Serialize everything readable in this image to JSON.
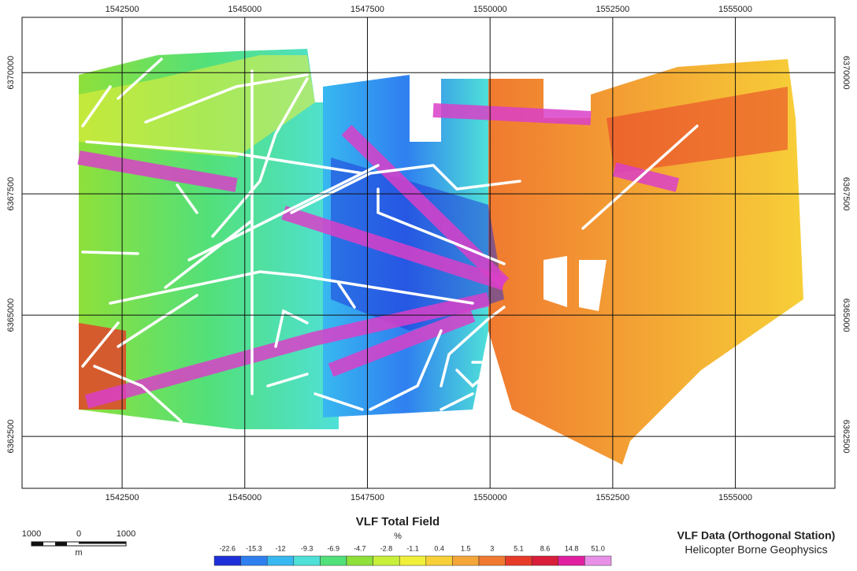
{
  "map": {
    "xlim": [
      1540460,
      1557030
    ],
    "ylim": [
      6361430,
      6371140
    ],
    "xticks": [
      1542500,
      1545000,
      1547500,
      1550000,
      1552500,
      1555000
    ],
    "yticks": [
      6362500,
      6365000,
      6367500,
      6370000
    ]
  },
  "legend": {
    "title": "VLF Total Field",
    "unit": "%",
    "ticks": [
      -22.6,
      -15.3,
      -12.0,
      -9.3,
      -6.9,
      -4.7,
      -2.8,
      -1.1,
      0.4,
      1.5,
      3.0,
      5.1,
      8.6,
      14.8,
      {
        "value": 51,
        "label": "51.0"
      }
    ],
    "colors": [
      "#1d2fd8",
      "#2f7ff0",
      "#38b8f0",
      "#4fe0d8",
      "#52e07a",
      "#8ee03a",
      "#c8f03a",
      "#f0f03a",
      "#f7cf38",
      "#f5a638",
      "#f07a30",
      "#e83a28",
      "#d81e3a",
      "#e020a0",
      "#e890e8"
    ]
  },
  "scale_bar": {
    "labels": [
      "1000",
      "0",
      "1000"
    ],
    "unit": "m"
  },
  "caption": {
    "title": "VLF Data (Orthogonal Station)",
    "subtitle": "Helicopter Borne Geophysics"
  }
}
